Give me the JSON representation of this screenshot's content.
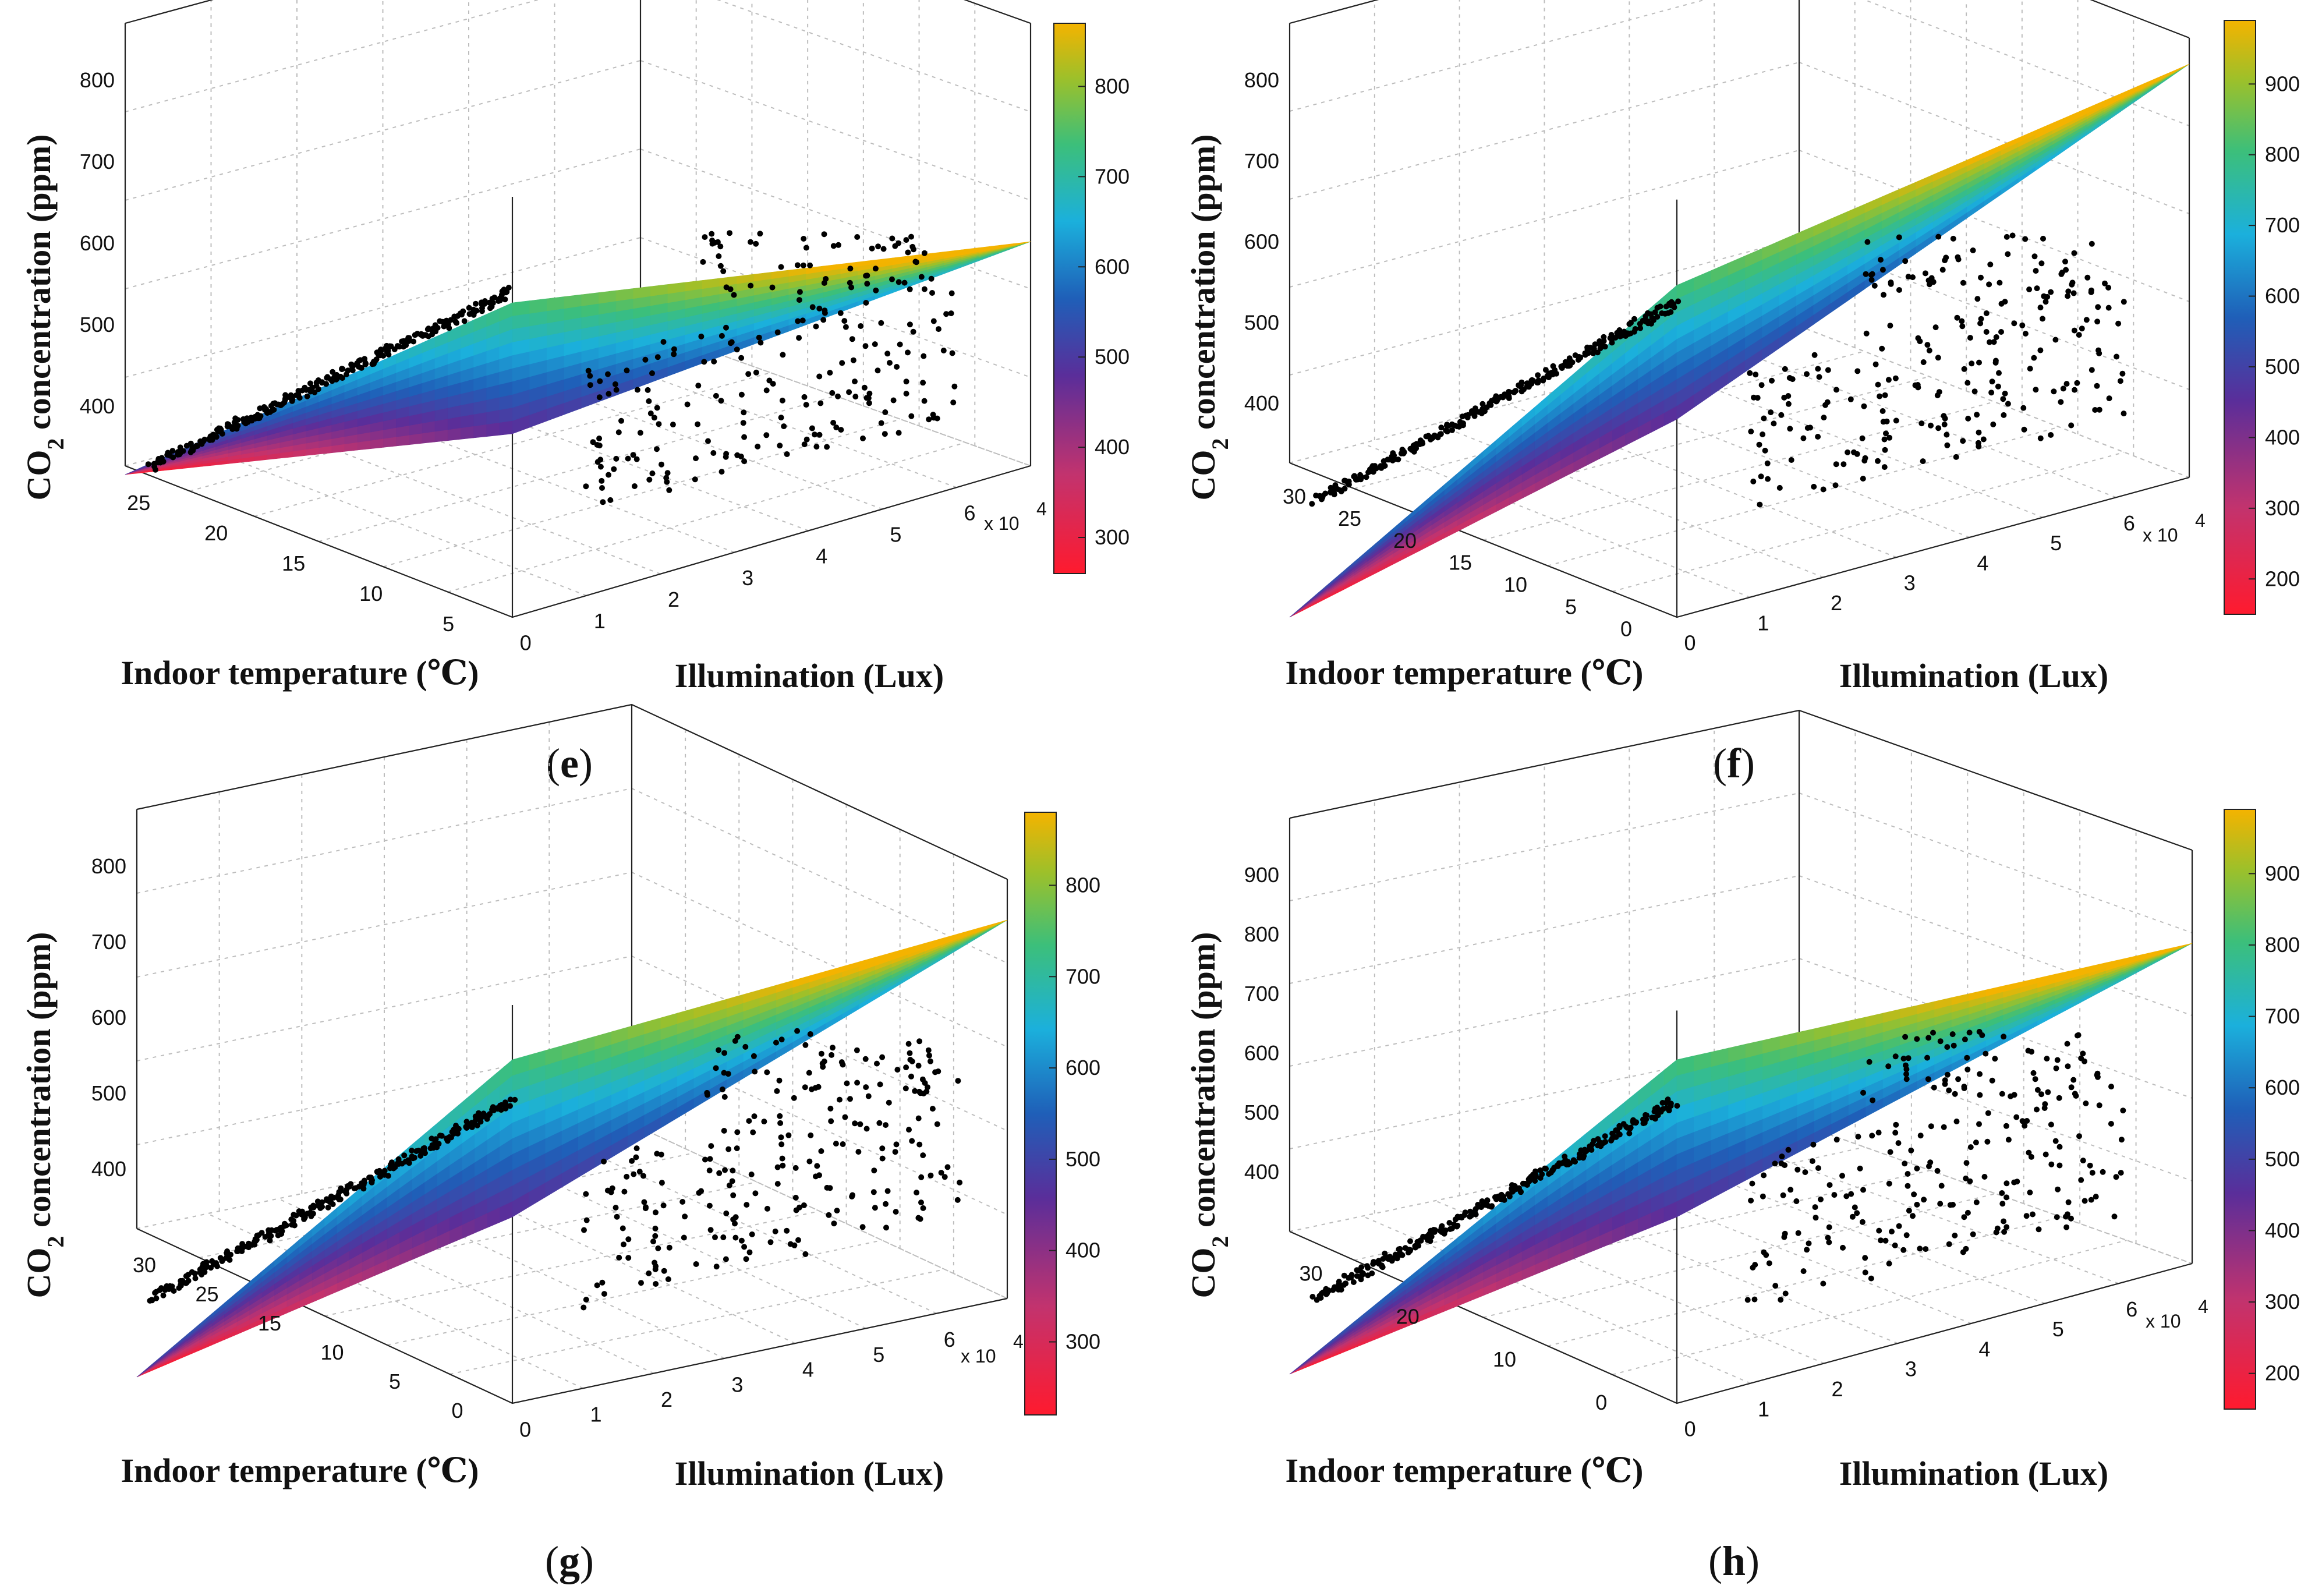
{
  "figure": {
    "description_labels": [
      "e",
      "f",
      "g",
      "h"
    ]
  },
  "chart_data": [
    {
      "id": "e",
      "type": "surface3d-scatter",
      "panel_label": "e",
      "xlabel": "Indoor temperature (℃)",
      "ylabel": "Illumination (Lux)",
      "zlabel_main": "CO",
      "zlabel_sub": "2",
      "zlabel_rest": " concentration (ppm)",
      "y_exponent_base": "x 10",
      "y_exponent_power": "4",
      "x_ticks": [
        "25",
        "20",
        "15",
        "10",
        "5"
      ],
      "y_ticks": [
        "0",
        "1",
        "2",
        "3",
        "4",
        "5",
        "6"
      ],
      "z_ticks": [
        "400",
        "500",
        "600",
        "700",
        "800"
      ],
      "colorbar_ticks": [
        "300",
        "400",
        "500",
        "600",
        "700",
        "800"
      ],
      "colorbar_range": [
        260,
        870
      ],
      "plane_z_range": [
        370,
        870
      ]
    },
    {
      "id": "f",
      "type": "surface3d-scatter",
      "panel_label": "f",
      "xlabel": "Indoor temperature (℃)",
      "ylabel": "Illumination (Lux)",
      "zlabel_main": "CO",
      "zlabel_sub": "2",
      "zlabel_rest": " concentration (ppm)",
      "y_exponent_base": "x 10",
      "y_exponent_power": "4",
      "x_ticks": [
        "30",
        "25",
        "20",
        "15",
        "10",
        "5",
        "0"
      ],
      "y_ticks": [
        "0",
        "1",
        "2",
        "3",
        "4",
        "5",
        "6"
      ],
      "z_ticks": [
        "400",
        "500",
        "600",
        "700",
        "800"
      ],
      "colorbar_ticks": [
        "200",
        "300",
        "400",
        "500",
        "600",
        "700",
        "800",
        "900"
      ],
      "colorbar_range": [
        150,
        990
      ],
      "plane_z_range": [
        150,
        990
      ]
    },
    {
      "id": "g",
      "type": "surface3d-scatter",
      "panel_label": "g",
      "xlabel": "Indoor temperature (℃)",
      "ylabel": "Illumination (Lux)",
      "zlabel_main": "CO",
      "zlabel_sub": "2",
      "zlabel_rest": " concentration (ppm)",
      "y_exponent_base": "x 10",
      "y_exponent_power": "4",
      "x_ticks": [
        "30",
        "25",
        "15",
        "10",
        "5",
        "0"
      ],
      "y_ticks": [
        "0",
        "1",
        "2",
        "3",
        "4",
        "5",
        "6"
      ],
      "z_ticks": [
        "400",
        "500",
        "600",
        "700",
        "800"
      ],
      "colorbar_ticks": [
        "300",
        "400",
        "500",
        "600",
        "700",
        "800"
      ],
      "colorbar_range": [
        220,
        880
      ],
      "plane_z_range": [
        220,
        880
      ]
    },
    {
      "id": "h",
      "type": "surface3d-scatter",
      "panel_label": "h",
      "xlabel": "Indoor temperature (℃)",
      "ylabel": "Illumination (Lux)",
      "zlabel_main": "CO",
      "zlabel_sub": "2",
      "zlabel_rest": " concentration (ppm)",
      "y_exponent_base": "x 10",
      "y_exponent_power": "4",
      "x_ticks": [
        "30",
        "20",
        "10",
        "0"
      ],
      "y_ticks": [
        "0",
        "1",
        "2",
        "3",
        "4",
        "5",
        "6"
      ],
      "z_ticks": [
        "400",
        "500",
        "600",
        "700",
        "800",
        "900"
      ],
      "colorbar_ticks": [
        "200",
        "300",
        "400",
        "500",
        "600",
        "700",
        "800",
        "900"
      ],
      "colorbar_range": [
        150,
        990
      ],
      "plane_z_range": [
        150,
        990
      ]
    }
  ]
}
